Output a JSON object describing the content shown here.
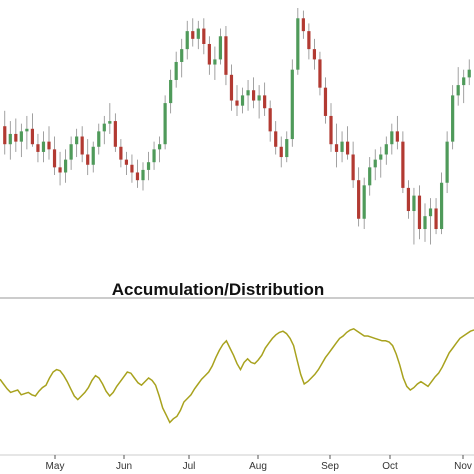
{
  "colors": {
    "up": "#4f9a5a",
    "down": "#b23a32",
    "wick": "#8a8a8a",
    "ad_line": "#a8a21e",
    "separator": "#999999",
    "tick": "#555555",
    "background": "#ffffff"
  },
  "chart_data": [
    {
      "type": "candlestick",
      "title": "",
      "x_axis": "trading days",
      "y_axis": "price (unlabeled)",
      "ylim": [
        0,
        100
      ],
      "grid": false,
      "candles": [
        {
          "o": 54,
          "h": 60,
          "l": 43,
          "c": 47
        },
        {
          "o": 47,
          "h": 56,
          "l": 41,
          "c": 51
        },
        {
          "o": 51,
          "h": 57,
          "l": 44,
          "c": 48
        },
        {
          "o": 48,
          "h": 55,
          "l": 42,
          "c": 52
        },
        {
          "o": 52,
          "h": 58,
          "l": 45,
          "c": 53
        },
        {
          "o": 53,
          "h": 59,
          "l": 46,
          "c": 47
        },
        {
          "o": 47,
          "h": 51,
          "l": 40,
          "c": 44
        },
        {
          "o": 44,
          "h": 52,
          "l": 40,
          "c": 48
        },
        {
          "o": 48,
          "h": 54,
          "l": 41,
          "c": 45
        },
        {
          "o": 45,
          "h": 50,
          "l": 35,
          "c": 38
        },
        {
          "o": 38,
          "h": 44,
          "l": 31,
          "c": 36
        },
        {
          "o": 36,
          "h": 45,
          "l": 32,
          "c": 41
        },
        {
          "o": 41,
          "h": 50,
          "l": 37,
          "c": 47
        },
        {
          "o": 47,
          "h": 53,
          "l": 42,
          "c": 50
        },
        {
          "o": 50,
          "h": 54,
          "l": 40,
          "c": 43
        },
        {
          "o": 43,
          "h": 49,
          "l": 35,
          "c": 39
        },
        {
          "o": 39,
          "h": 48,
          "l": 36,
          "c": 46
        },
        {
          "o": 46,
          "h": 55,
          "l": 43,
          "c": 52
        },
        {
          "o": 52,
          "h": 58,
          "l": 47,
          "c": 55
        },
        {
          "o": 55,
          "h": 63,
          "l": 51,
          "c": 56
        },
        {
          "o": 56,
          "h": 59,
          "l": 44,
          "c": 46
        },
        {
          "o": 46,
          "h": 49,
          "l": 38,
          "c": 41
        },
        {
          "o": 41,
          "h": 44,
          "l": 35,
          "c": 39
        },
        {
          "o": 39,
          "h": 43,
          "l": 32,
          "c": 36
        },
        {
          "o": 36,
          "h": 41,
          "l": 30,
          "c": 33
        },
        {
          "o": 33,
          "h": 40,
          "l": 29,
          "c": 37
        },
        {
          "o": 37,
          "h": 44,
          "l": 33,
          "c": 40
        },
        {
          "o": 40,
          "h": 48,
          "l": 37,
          "c": 45
        },
        {
          "o": 45,
          "h": 50,
          "l": 40,
          "c": 47
        },
        {
          "o": 47,
          "h": 66,
          "l": 45,
          "c": 63
        },
        {
          "o": 63,
          "h": 76,
          "l": 59,
          "c": 72
        },
        {
          "o": 72,
          "h": 83,
          "l": 69,
          "c": 79
        },
        {
          "o": 79,
          "h": 88,
          "l": 73,
          "c": 84
        },
        {
          "o": 84,
          "h": 95,
          "l": 80,
          "c": 91
        },
        {
          "o": 91,
          "h": 96,
          "l": 85,
          "c": 88
        },
        {
          "o": 88,
          "h": 95,
          "l": 84,
          "c": 92
        },
        {
          "o": 92,
          "h": 96,
          "l": 82,
          "c": 86
        },
        {
          "o": 86,
          "h": 89,
          "l": 74,
          "c": 78
        },
        {
          "o": 78,
          "h": 85,
          "l": 72,
          "c": 80
        },
        {
          "o": 80,
          "h": 92,
          "l": 78,
          "c": 89
        },
        {
          "o": 89,
          "h": 93,
          "l": 70,
          "c": 74
        },
        {
          "o": 74,
          "h": 78,
          "l": 60,
          "c": 64
        },
        {
          "o": 64,
          "h": 70,
          "l": 58,
          "c": 62
        },
        {
          "o": 62,
          "h": 69,
          "l": 59,
          "c": 66
        },
        {
          "o": 66,
          "h": 72,
          "l": 60,
          "c": 68
        },
        {
          "o": 68,
          "h": 73,
          "l": 61,
          "c": 64
        },
        {
          "o": 64,
          "h": 70,
          "l": 57,
          "c": 66
        },
        {
          "o": 66,
          "h": 71,
          "l": 58,
          "c": 61
        },
        {
          "o": 61,
          "h": 64,
          "l": 48,
          "c": 52
        },
        {
          "o": 52,
          "h": 56,
          "l": 43,
          "c": 46
        },
        {
          "o": 46,
          "h": 50,
          "l": 38,
          "c": 42
        },
        {
          "o": 42,
          "h": 52,
          "l": 40,
          "c": 49
        },
        {
          "o": 49,
          "h": 80,
          "l": 46,
          "c": 76
        },
        {
          "o": 76,
          "h": 100,
          "l": 74,
          "c": 96
        },
        {
          "o": 96,
          "h": 99,
          "l": 88,
          "c": 91
        },
        {
          "o": 91,
          "h": 94,
          "l": 80,
          "c": 84
        },
        {
          "o": 84,
          "h": 88,
          "l": 76,
          "c": 80
        },
        {
          "o": 80,
          "h": 83,
          "l": 66,
          "c": 69
        },
        {
          "o": 69,
          "h": 73,
          "l": 55,
          "c": 58
        },
        {
          "o": 58,
          "h": 63,
          "l": 44,
          "c": 47
        },
        {
          "o": 47,
          "h": 55,
          "l": 38,
          "c": 44
        },
        {
          "o": 44,
          "h": 52,
          "l": 40,
          "c": 48
        },
        {
          "o": 48,
          "h": 54,
          "l": 41,
          "c": 43
        },
        {
          "o": 43,
          "h": 48,
          "l": 30,
          "c": 33
        },
        {
          "o": 33,
          "h": 38,
          "l": 15,
          "c": 18
        },
        {
          "o": 18,
          "h": 34,
          "l": 14,
          "c": 31
        },
        {
          "o": 31,
          "h": 42,
          "l": 27,
          "c": 38
        },
        {
          "o": 38,
          "h": 45,
          "l": 33,
          "c": 41
        },
        {
          "o": 41,
          "h": 46,
          "l": 34,
          "c": 43
        },
        {
          "o": 43,
          "h": 50,
          "l": 39,
          "c": 47
        },
        {
          "o": 47,
          "h": 55,
          "l": 43,
          "c": 52
        },
        {
          "o": 52,
          "h": 58,
          "l": 45,
          "c": 48
        },
        {
          "o": 48,
          "h": 52,
          "l": 28,
          "c": 30
        },
        {
          "o": 30,
          "h": 33,
          "l": 18,
          "c": 21
        },
        {
          "o": 21,
          "h": 30,
          "l": 8,
          "c": 27
        },
        {
          "o": 27,
          "h": 31,
          "l": 10,
          "c": 14
        },
        {
          "o": 14,
          "h": 24,
          "l": 9,
          "c": 19
        },
        {
          "o": 19,
          "h": 26,
          "l": 8,
          "c": 22
        },
        {
          "o": 22,
          "h": 26,
          "l": 12,
          "c": 14
        },
        {
          "o": 14,
          "h": 36,
          "l": 12,
          "c": 32
        },
        {
          "o": 32,
          "h": 52,
          "l": 28,
          "c": 48
        },
        {
          "o": 48,
          "h": 70,
          "l": 45,
          "c": 66
        },
        {
          "o": 66,
          "h": 77,
          "l": 62,
          "c": 70
        },
        {
          "o": 70,
          "h": 76,
          "l": 63,
          "c": 73
        },
        {
          "o": 73,
          "h": 80,
          "l": 70,
          "c": 76
        }
      ]
    },
    {
      "type": "line",
      "title": "Accumulation/Distribution",
      "x_axis": "trading days",
      "y_axis": "A/D value (unlabeled)",
      "ylim": [
        0,
        100
      ],
      "grid": false,
      "months": [
        "May",
        "Jun",
        "Jul",
        "Aug",
        "Sep",
        "Oct",
        "Nov"
      ],
      "series": [
        {
          "values": [
            44,
            40,
            36,
            33,
            34,
            35,
            31,
            32,
            33,
            31,
            30,
            34,
            37,
            39,
            45,
            50,
            52,
            51,
            47,
            42,
            36,
            30,
            27,
            30,
            33,
            37,
            43,
            47,
            45,
            40,
            34,
            30,
            33,
            38,
            42,
            46,
            50,
            49,
            45,
            41,
            39,
            42,
            45,
            43,
            39,
            30,
            20,
            14,
            8,
            11,
            13,
            18,
            25,
            28,
            31,
            36,
            40,
            44,
            47,
            50,
            55,
            62,
            68,
            73,
            76,
            70,
            64,
            57,
            52,
            58,
            61,
            58,
            57,
            60,
            64,
            70,
            74,
            78,
            81,
            83,
            84,
            82,
            78,
            72,
            60,
            48,
            40,
            42,
            45,
            48,
            52,
            57,
            62,
            66,
            70,
            74,
            78,
            80,
            83,
            85,
            86,
            84,
            82,
            80,
            80,
            79,
            78,
            77,
            76,
            76,
            75,
            72,
            65,
            56,
            45,
            38,
            35,
            37,
            40,
            42,
            40,
            38,
            42,
            46,
            49,
            54,
            60,
            66,
            70,
            74,
            78,
            80,
            82,
            84,
            85
          ]
        }
      ]
    }
  ]
}
